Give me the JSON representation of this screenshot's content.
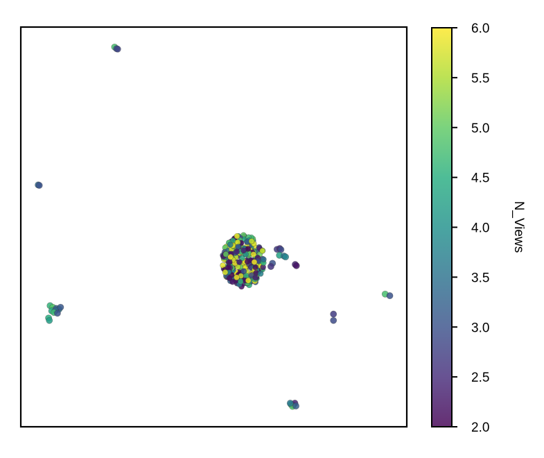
{
  "chart_data": {
    "type": "scatter",
    "title": "",
    "xlabel": "",
    "ylabel": "",
    "xlim": [
      0,
      100
    ],
    "ylim": [
      0,
      100
    ],
    "x_ticks_visible": false,
    "y_ticks_visible": false,
    "grid": false,
    "colorbar": {
      "label": "N_Views",
      "colormap": "viridis",
      "range": [
        2.0,
        6.0
      ],
      "ticks": [
        2.0,
        2.5,
        3.0,
        3.5,
        4.0,
        4.5,
        5.0,
        5.5,
        6.0
      ],
      "tick_labels": [
        "2.0",
        "2.5",
        "3.0",
        "3.5",
        "4.0",
        "4.5",
        "5.0",
        "5.5",
        "6.0"
      ]
    },
    "points": [
      {
        "x": 24.3,
        "y": 95.0,
        "c": 4.8
      },
      {
        "x": 24.8,
        "y": 94.6,
        "c": 3.1
      },
      {
        "x": 25.1,
        "y": 94.5,
        "c": 2.8
      },
      {
        "x": 4.5,
        "y": 60.5,
        "c": 3.4
      },
      {
        "x": 4.8,
        "y": 60.4,
        "c": 3.0
      },
      {
        "x": 7.6,
        "y": 30.3,
        "c": 4.6
      },
      {
        "x": 8.3,
        "y": 29.9,
        "c": 4.9
      },
      {
        "x": 9.2,
        "y": 29.6,
        "c": 3.2
      },
      {
        "x": 9.9,
        "y": 29.4,
        "c": 3.6
      },
      {
        "x": 8.0,
        "y": 29.0,
        "c": 4.4
      },
      {
        "x": 9.0,
        "y": 29.1,
        "c": 3.3
      },
      {
        "x": 8.6,
        "y": 28.6,
        "c": 4.7
      },
      {
        "x": 9.5,
        "y": 28.4,
        "c": 3.0
      },
      {
        "x": 10.3,
        "y": 29.9,
        "c": 3.1
      },
      {
        "x": 7.2,
        "y": 27.2,
        "c": 4.5
      },
      {
        "x": 7.4,
        "y": 26.6,
        "c": 4.2
      },
      {
        "x": 66.4,
        "y": 44.4,
        "c": 2.7
      },
      {
        "x": 67.1,
        "y": 44.6,
        "c": 2.5
      },
      {
        "x": 67.4,
        "y": 44.3,
        "c": 2.9
      },
      {
        "x": 67.0,
        "y": 42.9,
        "c": 4.3
      },
      {
        "x": 68.2,
        "y": 42.7,
        "c": 3.6
      },
      {
        "x": 68.6,
        "y": 42.5,
        "c": 3.8
      },
      {
        "x": 71.1,
        "y": 40.6,
        "c": 2.4
      },
      {
        "x": 71.4,
        "y": 40.3,
        "c": 2.2
      },
      {
        "x": 65.2,
        "y": 40.9,
        "c": 3.0
      },
      {
        "x": 64.8,
        "y": 40.1,
        "c": 2.6
      },
      {
        "x": 81.0,
        "y": 28.2,
        "c": 2.7
      },
      {
        "x": 81.0,
        "y": 26.6,
        "c": 2.9
      },
      {
        "x": 94.4,
        "y": 33.2,
        "c": 4.8
      },
      {
        "x": 95.6,
        "y": 32.8,
        "c": 3.0
      },
      {
        "x": 70.0,
        "y": 5.6,
        "c": 4.4
      },
      {
        "x": 70.6,
        "y": 5.4,
        "c": 3.0
      },
      {
        "x": 71.0,
        "y": 5.9,
        "c": 2.4
      },
      {
        "x": 70.4,
        "y": 5.1,
        "c": 4.9
      },
      {
        "x": 69.8,
        "y": 5.9,
        "c": 3.6
      },
      {
        "x": 71.3,
        "y": 5.2,
        "c": 3.2
      }
    ],
    "clusters": [
      {
        "cx": 57.7,
        "cy": 41.5,
        "rx": 5.6,
        "ry": 6.5,
        "n": 280,
        "seed": 11,
        "dense": true
      }
    ]
  }
}
